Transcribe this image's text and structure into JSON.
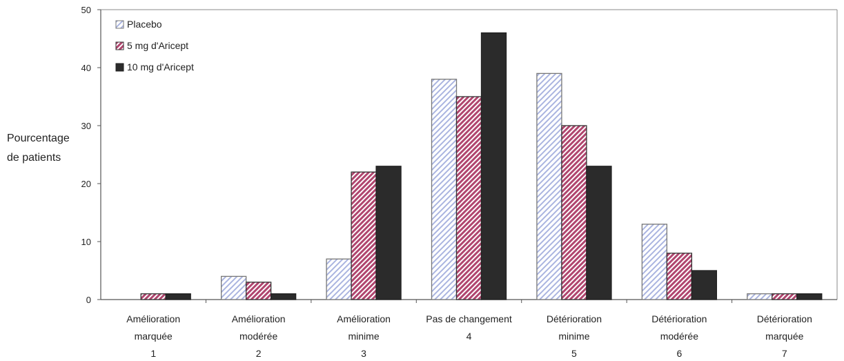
{
  "chart_data": {
    "type": "bar",
    "title": "",
    "ylabel_lines": [
      "Pourcentage",
      "de patients"
    ],
    "ylim": [
      0,
      50
    ],
    "yticks": [
      0,
      10,
      20,
      30,
      40,
      50
    ],
    "categories": [
      [
        "Amélioration",
        "marquée",
        "1"
      ],
      [
        "Amélioration",
        "modérée",
        "2"
      ],
      [
        "Amélioration",
        "minime",
        "3"
      ],
      [
        "Pas de changement",
        "4"
      ],
      [
        "Détérioration",
        "minime",
        "5"
      ],
      [
        "Détérioration",
        "modérée",
        "6"
      ],
      [
        "Détérioration",
        "marquée",
        "7"
      ]
    ],
    "series": [
      {
        "name": "Placebo",
        "values": [
          0,
          4,
          7,
          38,
          39,
          13,
          1
        ],
        "color": "#ffffff",
        "pattern": "blue-light-diagonal"
      },
      {
        "name": "5 mg d'Aricept",
        "values": [
          1,
          3,
          22,
          35,
          30,
          8,
          1
        ],
        "color": "#b0456e",
        "pattern": "pink-dark-diagonal"
      },
      {
        "name": "10 mg d'Aricept",
        "values": [
          1,
          1,
          23,
          46,
          23,
          5,
          1
        ],
        "color": "#2b2b2b",
        "pattern": "solid"
      }
    ],
    "legend_position": "top-left",
    "grid": false
  }
}
